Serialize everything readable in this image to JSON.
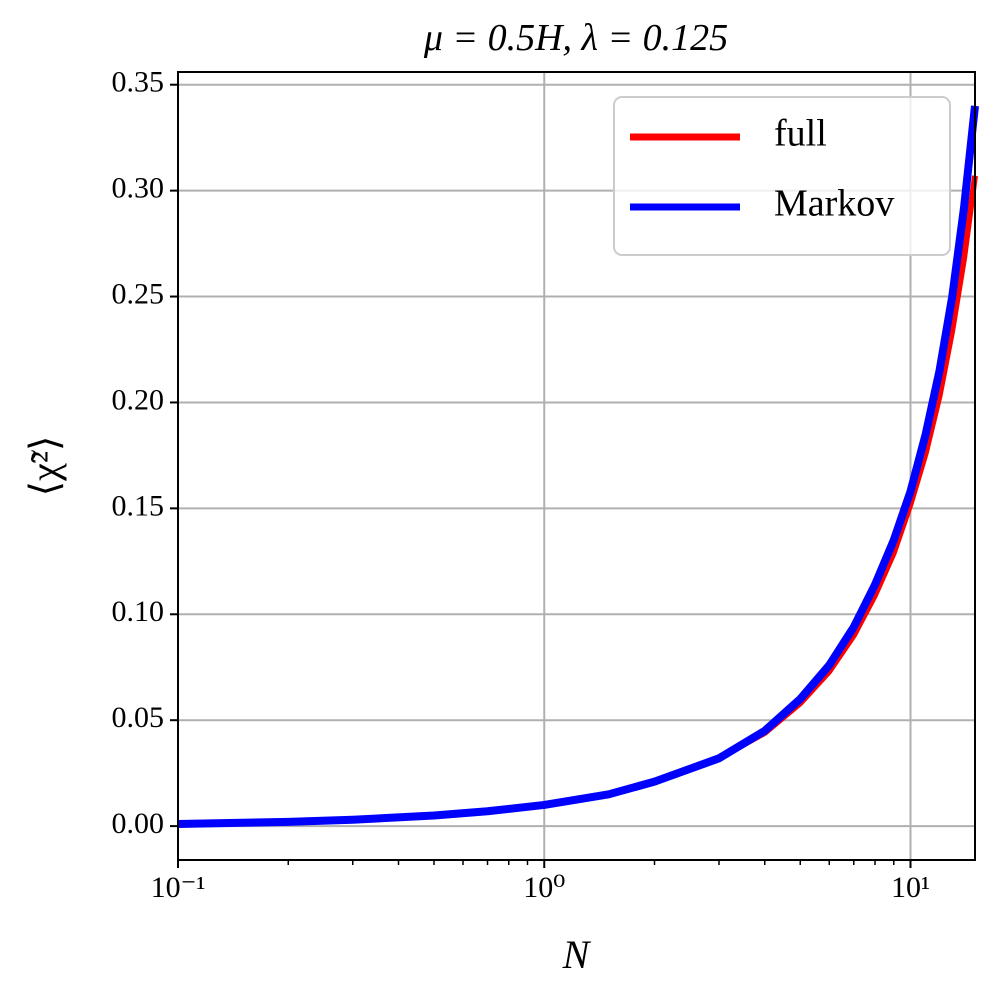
{
  "chart_data": {
    "type": "line",
    "title": "μ = 0.5H,  λ = 0.125",
    "x_label": "N",
    "y_label": "⟨χ̃²⟩",
    "x": [
      0.1,
      0.2,
      0.3,
      0.5,
      0.7,
      1,
      1.5,
      2,
      3,
      4,
      5,
      6,
      7,
      8,
      9,
      10,
      11,
      12,
      13,
      14,
      15
    ],
    "series": [
      {
        "name": "full",
        "color": "#ff0000",
        "values": [
          0.001,
          0.002,
          0.003,
          0.005,
          0.007,
          0.01,
          0.015,
          0.021,
          0.032,
          0.044,
          0.058,
          0.073,
          0.09,
          0.109,
          0.129,
          0.152,
          0.176,
          0.203,
          0.234,
          0.268,
          0.307
        ]
      },
      {
        "name": "Markov",
        "color": "#0000ff",
        "values": [
          0.001,
          0.002,
          0.003,
          0.005,
          0.007,
          0.01,
          0.015,
          0.021,
          0.032,
          0.045,
          0.06,
          0.076,
          0.094,
          0.114,
          0.135,
          0.158,
          0.185,
          0.215,
          0.25,
          0.292,
          0.34
        ]
      }
    ],
    "xlim": [
      0.1,
      15
    ],
    "ylim": [
      -0.016,
      0.356
    ],
    "x_log": true,
    "xticks": [
      {
        "value": 0.1,
        "label": "10⁻¹"
      },
      {
        "value": 1,
        "label": "10⁰"
      },
      {
        "value": 10,
        "label": "10¹"
      }
    ],
    "yticks": [
      {
        "value": 0,
        "label": "0.00"
      },
      {
        "value": 0.05,
        "label": "0.05"
      },
      {
        "value": 0.1,
        "label": "0.10"
      },
      {
        "value": 0.15,
        "label": "0.15"
      },
      {
        "value": 0.2,
        "label": "0.20"
      },
      {
        "value": 0.25,
        "label": "0.25"
      },
      {
        "value": 0.3,
        "label": "0.30"
      },
      {
        "value": 0.35,
        "label": "0.35"
      }
    ],
    "grid": true,
    "legend": "upper right"
  }
}
